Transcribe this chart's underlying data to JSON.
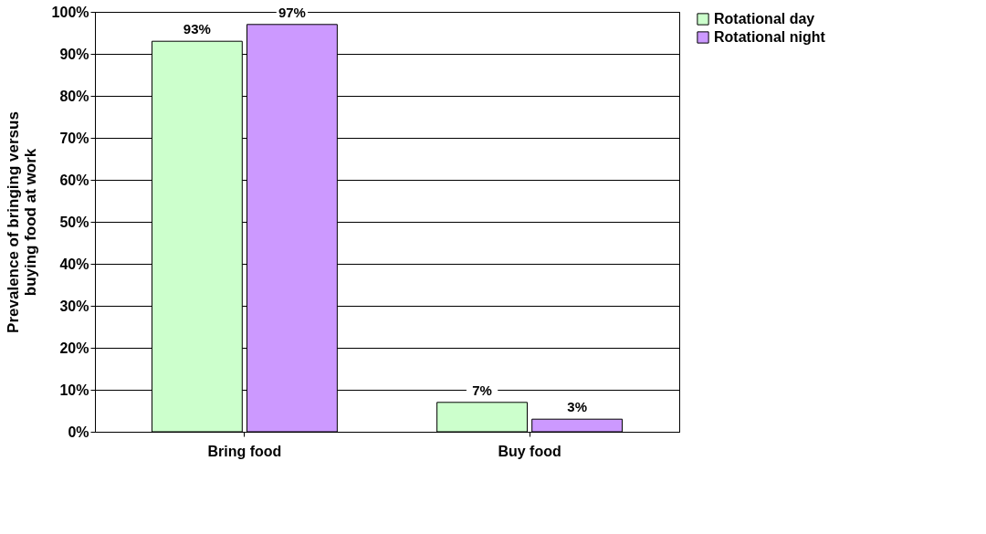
{
  "chart_data": {
    "type": "bar",
    "ylabel": "Prevalence of bringing versus buying food at work",
    "categories": [
      "Bring food",
      "Buy food"
    ],
    "series": [
      {
        "name": "Rotational day",
        "color": "#ccffcc",
        "values": [
          93,
          7
        ],
        "value_labels": [
          "93%",
          "7%"
        ]
      },
      {
        "name": "Rotational night",
        "color": "#cc99ff",
        "values": [
          97,
          3
        ],
        "value_labels": [
          "97%",
          "3%"
        ]
      }
    ],
    "ylim": [
      0,
      100
    ],
    "yticks": [
      {
        "value": 0,
        "label": "0%"
      },
      {
        "value": 10,
        "label": "10%"
      },
      {
        "value": 20,
        "label": "20%"
      },
      {
        "value": 30,
        "label": "30%"
      },
      {
        "value": 40,
        "label": "40%"
      },
      {
        "value": 50,
        "label": "50%"
      },
      {
        "value": 60,
        "label": "60%"
      },
      {
        "value": 70,
        "label": "70%"
      },
      {
        "value": 80,
        "label": "80%"
      },
      {
        "value": 90,
        "label": "90%"
      },
      {
        "value": 100,
        "label": "100%"
      }
    ],
    "grid": "y",
    "legend": "right"
  }
}
